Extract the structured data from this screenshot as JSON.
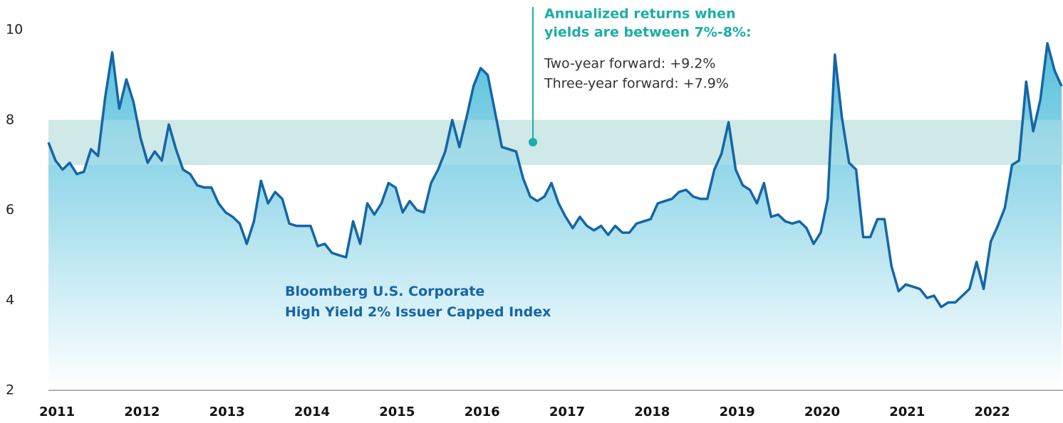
{
  "chart_data": {
    "type": "area",
    "series": [
      {
        "name": "Bloomberg U.S. Corporate High Yield 2% Issuer Capped Index",
        "color": "#1565a6",
        "values": [
          7.5,
          7.1,
          6.9,
          7.05,
          6.8,
          6.85,
          7.35,
          7.2,
          8.5,
          9.5,
          8.25,
          8.9,
          8.4,
          7.6,
          7.05,
          7.3,
          7.1,
          7.9,
          7.35,
          6.9,
          6.8,
          6.55,
          6.5,
          6.5,
          6.15,
          5.95,
          5.85,
          5.7,
          5.25,
          5.75,
          6.65,
          6.15,
          6.4,
          6.25,
          5.7,
          5.65,
          5.65,
          5.65,
          5.2,
          5.25,
          5.05,
          5.0,
          4.95,
          5.75,
          5.25,
          6.15,
          5.9,
          6.15,
          6.6,
          6.5,
          5.95,
          6.2,
          6.0,
          5.95,
          6.6,
          6.9,
          7.3,
          8.0,
          7.4,
          8.05,
          8.75,
          9.15,
          9.0,
          8.2,
          7.4,
          7.35,
          7.3,
          6.7,
          6.3,
          6.2,
          6.3,
          6.6,
          6.15,
          5.85,
          5.6,
          5.85,
          5.65,
          5.55,
          5.65,
          5.45,
          5.65,
          5.5,
          5.5,
          5.7,
          5.75,
          5.8,
          6.15,
          6.2,
          6.25,
          6.4,
          6.45,
          6.3,
          6.25,
          6.25,
          6.9,
          7.25,
          7.95,
          6.9,
          6.55,
          6.45,
          6.15,
          6.6,
          5.85,
          5.9,
          5.75,
          5.7,
          5.75,
          5.6,
          5.25,
          5.5,
          6.25,
          9.45,
          8.05,
          7.05,
          6.9,
          5.4,
          5.4,
          5.8,
          5.8,
          4.75,
          4.2,
          4.35,
          4.3,
          4.25,
          4.05,
          4.1,
          3.85,
          3.95,
          3.95,
          4.1,
          4.25,
          4.85,
          4.25,
          5.3,
          5.65,
          6.05,
          7.0,
          7.1,
          8.85,
          7.75,
          8.45,
          9.7,
          9.1,
          8.75
        ]
      }
    ],
    "categories": [
      "2011",
      null,
      null,
      null,
      null,
      null,
      null,
      null,
      null,
      null,
      null,
      null,
      "2012",
      null,
      null,
      null,
      null,
      null,
      null,
      null,
      null,
      null,
      null,
      null,
      "2013",
      null,
      null,
      null,
      null,
      null,
      null,
      null,
      null,
      null,
      null,
      null,
      "2014",
      null,
      null,
      null,
      null,
      null,
      null,
      null,
      null,
      null,
      null,
      null,
      "2015",
      null,
      null,
      null,
      null,
      null,
      null,
      null,
      null,
      null,
      null,
      null,
      "2016",
      null,
      null,
      null,
      null,
      null,
      null,
      null,
      null,
      null,
      null,
      null,
      "2017",
      null,
      null,
      null,
      null,
      null,
      null,
      null,
      null,
      null,
      null,
      null,
      "2018",
      null,
      null,
      null,
      null,
      null,
      null,
      null,
      null,
      null,
      null,
      null,
      "2019",
      null,
      null,
      null,
      null,
      null,
      null,
      null,
      null,
      null,
      null,
      null,
      "2020",
      null,
      null,
      null,
      null,
      null,
      null,
      null,
      null,
      null,
      null,
      null,
      "2021",
      null,
      null,
      null,
      null,
      null,
      null,
      null,
      null,
      null,
      null,
      null,
      "2022",
      null,
      null,
      null,
      null,
      null,
      null,
      null,
      null,
      null,
      null,
      null
    ],
    "ylim": [
      2,
      10
    ],
    "yticks": [
      2,
      4,
      6,
      8,
      10
    ],
    "highlight_band": [
      7,
      8
    ],
    "band_color": "#cfe9e8",
    "annotation": {
      "title": [
        "Annualized returns when",
        "yields are between 7%-8%:"
      ],
      "lines": [
        "Two-year forward: +9.2%",
        "Three-year forward: +7.9%"
      ],
      "color": "#1aaea6"
    }
  }
}
